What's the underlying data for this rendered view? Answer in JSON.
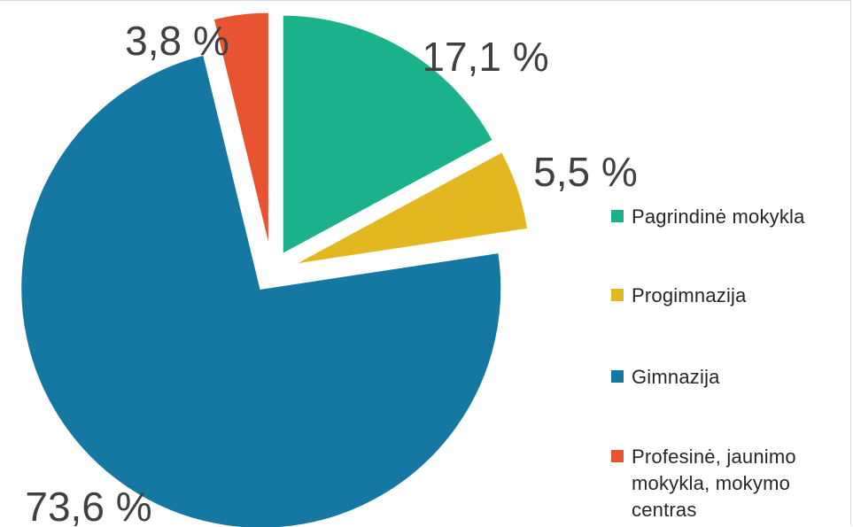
{
  "chart_data": {
    "type": "pie",
    "title": "",
    "categories": [
      "Pagrindinė mokykla",
      "Progimnazija",
      "Gimnazija",
      "Profesinė, jaunimo mokykla, mokymo centras"
    ],
    "values": [
      17.1,
      5.5,
      73.6,
      3.8
    ],
    "value_labels": [
      "17,1 %",
      "5,5 %",
      "73,6 %",
      "3,8 %"
    ],
    "colors": [
      "#1BB18B",
      "#E2B71F",
      "#1478A2",
      "#E85431"
    ],
    "exploded": true,
    "legend_position": "right"
  }
}
